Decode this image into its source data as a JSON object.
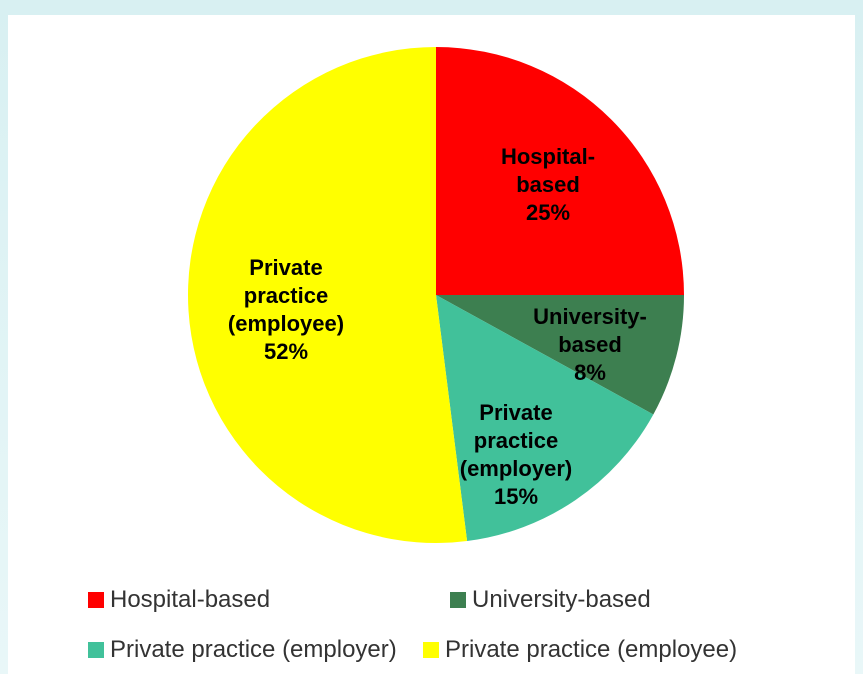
{
  "chart_data": {
    "type": "pie",
    "categories": [
      "Hospital-based",
      "University-based",
      "Private practice (employer)",
      "Private practice (employee)"
    ],
    "values": [
      25,
      8,
      15,
      52
    ],
    "value_labels": [
      "25%",
      "8%",
      "15%",
      "52%"
    ],
    "colors": [
      "#ff0000",
      "#3d7f50",
      "#41c19a",
      "#ffff00"
    ],
    "legend": "bottom"
  }
}
